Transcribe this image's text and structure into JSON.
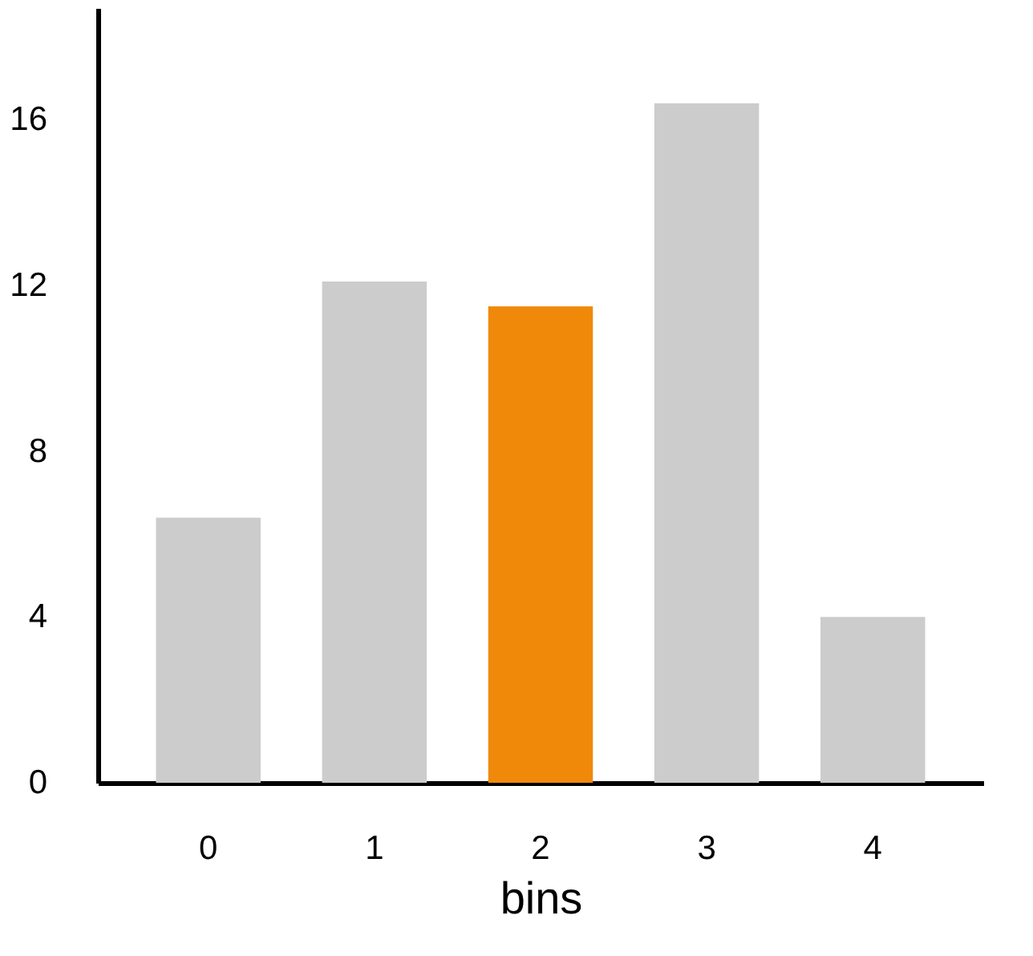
{
  "chart_data": {
    "type": "bar",
    "xlabel": "bins",
    "categories": [
      "0",
      "1",
      "2",
      "3",
      "4"
    ],
    "values": [
      6.4,
      12.1,
      11.5,
      16.4,
      4.0
    ],
    "colors": [
      "#cccccc",
      "#cccccc",
      "#f0890a",
      "#cccccc",
      "#cccccc"
    ],
    "ylim": [
      0,
      18.7
    ],
    "yticks": [
      0,
      4,
      8,
      12,
      16
    ],
    "grid": false
  }
}
